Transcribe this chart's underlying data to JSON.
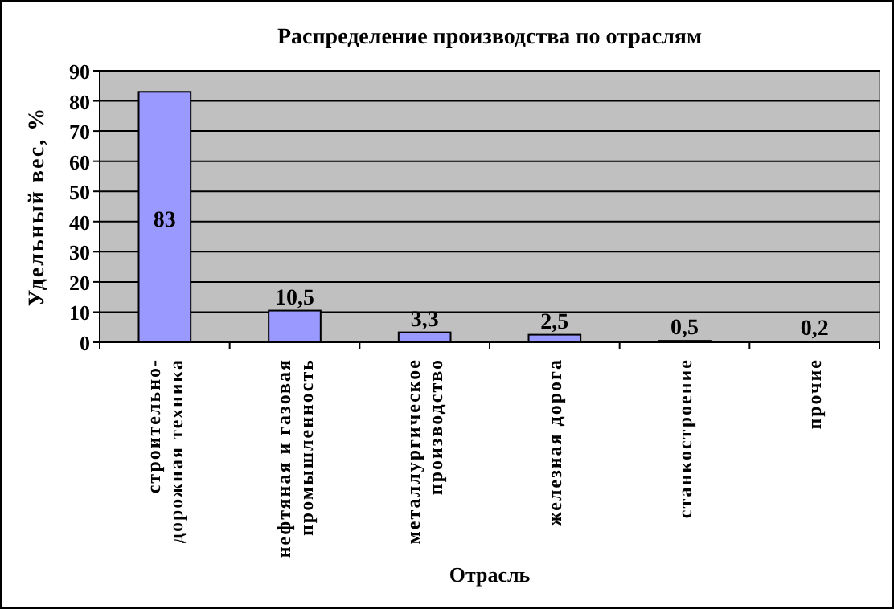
{
  "chart_data": {
    "type": "bar",
    "title": "Распределение производства по отраслям",
    "xlabel": "Отрасль",
    "ylabel": "Удельный вес, %",
    "categories": [
      "строительно-дорожная техника",
      "нефтяная и газовая промышленность",
      "металлургическое производство",
      "железная дорога",
      "станкостроение",
      "прочие"
    ],
    "values": [
      83,
      10.5,
      3.3,
      2.5,
      0.5,
      0.2
    ],
    "value_labels": [
      "83",
      "10,5",
      "3,3",
      "2,5",
      "0,5",
      "0,2"
    ],
    "color": "#9999ff",
    "ylim": [
      0,
      90
    ],
    "yticks": [
      0,
      10,
      20,
      30,
      40,
      50,
      60,
      70,
      80,
      90
    ],
    "grid": "y"
  }
}
